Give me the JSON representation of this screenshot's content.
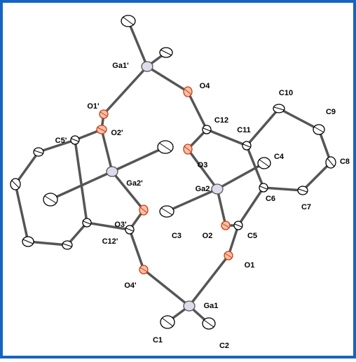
{
  "atoms": [
    "Ga1'",
    "O4",
    "O1'",
    "C5'",
    "O2'",
    "C12",
    "C11",
    "C10",
    "C9",
    "C8",
    "O3",
    "C4",
    "Ga2'",
    "Ga2",
    "C6",
    "C7",
    "O3'",
    "C3",
    "O2",
    "C5",
    "C12'",
    "O1",
    "O4'",
    "Ga1",
    "C1",
    "C2"
  ]
}
